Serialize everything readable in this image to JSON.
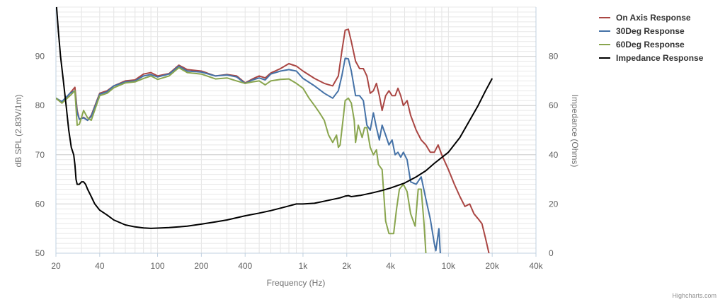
{
  "credits": "Highcharts.com",
  "chart_data": {
    "type": "line",
    "title": "",
    "xlabel": "Frequency (Hz)",
    "ylabel": "dB SPL (2.83V/1m)",
    "y2label": "Impedance (Ohms)",
    "x_scale": "log",
    "xlim": [
      20,
      40000
    ],
    "ylim": [
      50,
      100
    ],
    "y2lim": [
      0,
      100
    ],
    "grid": true,
    "legend_position": "top-right",
    "x_ticks": [
      {
        "value": 20,
        "label": "20"
      },
      {
        "value": 40,
        "label": "40"
      },
      {
        "value": 100,
        "label": "100"
      },
      {
        "value": 200,
        "label": "200"
      },
      {
        "value": 400,
        "label": "400"
      },
      {
        "value": 1000,
        "label": "1k"
      },
      {
        "value": 2000,
        "label": "2k"
      },
      {
        "value": 4000,
        "label": "4k"
      },
      {
        "value": 10000,
        "label": "10k"
      },
      {
        "value": 20000,
        "label": "20k"
      },
      {
        "value": 40000,
        "label": "40k"
      }
    ],
    "y_ticks": [
      50,
      60,
      70,
      80,
      90
    ],
    "y2_ticks": [
      0,
      20,
      40,
      60,
      80
    ],
    "series": [
      {
        "name": "On Axis Response",
        "color": "#aa4643",
        "axis": "left",
        "points": [
          [
            20,
            81.5
          ],
          [
            22,
            80.5
          ],
          [
            25,
            82.5
          ],
          [
            27,
            83.7
          ],
          [
            28,
            79
          ],
          [
            29,
            77.2
          ],
          [
            31,
            77.6
          ],
          [
            33,
            77
          ],
          [
            35,
            78
          ],
          [
            40,
            82.5
          ],
          [
            45,
            83
          ],
          [
            50,
            84
          ],
          [
            60,
            85
          ],
          [
            70,
            85.2
          ],
          [
            80,
            86.4
          ],
          [
            90,
            86.7
          ],
          [
            100,
            86
          ],
          [
            120,
            86.5
          ],
          [
            140,
            88.2
          ],
          [
            160,
            87.3
          ],
          [
            200,
            87
          ],
          [
            250,
            86
          ],
          [
            300,
            86.3
          ],
          [
            350,
            86
          ],
          [
            400,
            84.6
          ],
          [
            450,
            85.4
          ],
          [
            500,
            86
          ],
          [
            550,
            85.6
          ],
          [
            600,
            86.6
          ],
          [
            700,
            87.5
          ],
          [
            800,
            88.5
          ],
          [
            900,
            88
          ],
          [
            1000,
            87
          ],
          [
            1200,
            85.5
          ],
          [
            1400,
            84.5
          ],
          [
            1600,
            84
          ],
          [
            1750,
            86
          ],
          [
            1850,
            91
          ],
          [
            1950,
            95.3
          ],
          [
            2050,
            95.5
          ],
          [
            2150,
            93
          ],
          [
            2300,
            89
          ],
          [
            2450,
            87.5
          ],
          [
            2600,
            87.5
          ],
          [
            2750,
            86
          ],
          [
            2900,
            82.5
          ],
          [
            3050,
            83
          ],
          [
            3200,
            84.5
          ],
          [
            3350,
            82
          ],
          [
            3500,
            79
          ],
          [
            3700,
            82
          ],
          [
            3900,
            83
          ],
          [
            4100,
            82
          ],
          [
            4300,
            82
          ],
          [
            4500,
            83.5
          ],
          [
            4700,
            82
          ],
          [
            4900,
            80
          ],
          [
            5200,
            81
          ],
          [
            5500,
            78
          ],
          [
            6000,
            75
          ],
          [
            6500,
            73
          ],
          [
            7000,
            72
          ],
          [
            7500,
            70.5
          ],
          [
            8000,
            70.5
          ],
          [
            8500,
            72
          ],
          [
            9000,
            70
          ],
          [
            10000,
            67
          ],
          [
            11000,
            64
          ],
          [
            12000,
            61.5
          ],
          [
            13000,
            59.5
          ],
          [
            14000,
            60
          ],
          [
            15000,
            58
          ],
          [
            16000,
            57
          ],
          [
            17000,
            56
          ],
          [
            18000,
            53
          ],
          [
            19000,
            50
          ]
        ]
      },
      {
        "name": "30Deg Response",
        "color": "#4572a7",
        "axis": "left",
        "points": [
          [
            20,
            81.5
          ],
          [
            22,
            80.8
          ],
          [
            25,
            82.5
          ],
          [
            27,
            83
          ],
          [
            28,
            78.5
          ],
          [
            29,
            77.2
          ],
          [
            31,
            77.5
          ],
          [
            33,
            77
          ],
          [
            35,
            77.8
          ],
          [
            40,
            82.3
          ],
          [
            45,
            82.8
          ],
          [
            50,
            84
          ],
          [
            60,
            84.8
          ],
          [
            70,
            85
          ],
          [
            80,
            86
          ],
          [
            90,
            86.3
          ],
          [
            100,
            85.8
          ],
          [
            120,
            86.4
          ],
          [
            140,
            88
          ],
          [
            160,
            87
          ],
          [
            200,
            86.8
          ],
          [
            250,
            86
          ],
          [
            300,
            86.2
          ],
          [
            350,
            85.8
          ],
          [
            400,
            84.5
          ],
          [
            450,
            85.2
          ],
          [
            500,
            85.6
          ],
          [
            550,
            85.2
          ],
          [
            600,
            86.4
          ],
          [
            700,
            87
          ],
          [
            800,
            87.3
          ],
          [
            900,
            87
          ],
          [
            1000,
            85.5
          ],
          [
            1200,
            84
          ],
          [
            1400,
            82.5
          ],
          [
            1600,
            81.5
          ],
          [
            1750,
            83
          ],
          [
            1850,
            86
          ],
          [
            1950,
            89.6
          ],
          [
            2050,
            89.5
          ],
          [
            2150,
            87
          ],
          [
            2300,
            82
          ],
          [
            2450,
            82
          ],
          [
            2600,
            81
          ],
          [
            2750,
            76
          ],
          [
            2900,
            75
          ],
          [
            3050,
            78.5
          ],
          [
            3200,
            75.5
          ],
          [
            3350,
            73
          ],
          [
            3500,
            76
          ],
          [
            3700,
            74
          ],
          [
            3900,
            72
          ],
          [
            4100,
            73
          ],
          [
            4300,
            70
          ],
          [
            4500,
            70.5
          ],
          [
            4700,
            69.5
          ],
          [
            4900,
            70.5
          ],
          [
            5200,
            69
          ],
          [
            5500,
            64.5
          ],
          [
            6000,
            64
          ],
          [
            6500,
            65.5
          ],
          [
            7000,
            61
          ],
          [
            7500,
            57
          ],
          [
            8000,
            52
          ],
          [
            8200,
            50.5
          ],
          [
            8600,
            55
          ],
          [
            8800,
            50
          ]
        ]
      },
      {
        "name": "60Deg Response",
        "color": "#89a54e",
        "axis": "left",
        "points": [
          [
            20,
            81.5
          ],
          [
            22,
            80.5
          ],
          [
            25,
            82
          ],
          [
            27,
            83
          ],
          [
            28,
            76
          ],
          [
            29,
            76.2
          ],
          [
            31,
            79
          ],
          [
            33,
            77.5
          ],
          [
            35,
            77
          ],
          [
            40,
            82
          ],
          [
            45,
            82.5
          ],
          [
            50,
            83.6
          ],
          [
            60,
            84.6
          ],
          [
            70,
            84.8
          ],
          [
            80,
            85.5
          ],
          [
            90,
            86
          ],
          [
            100,
            85.3
          ],
          [
            120,
            86
          ],
          [
            140,
            87.7
          ],
          [
            160,
            86.7
          ],
          [
            200,
            86.4
          ],
          [
            250,
            85.4
          ],
          [
            300,
            85.6
          ],
          [
            350,
            85
          ],
          [
            400,
            84.5
          ],
          [
            450,
            84.8
          ],
          [
            500,
            85
          ],
          [
            550,
            84.2
          ],
          [
            600,
            85
          ],
          [
            700,
            85.3
          ],
          [
            800,
            85.4
          ],
          [
            900,
            84.5
          ],
          [
            1000,
            83.5
          ],
          [
            1100,
            81.5
          ],
          [
            1200,
            80
          ],
          [
            1300,
            78.5
          ],
          [
            1400,
            77
          ],
          [
            1500,
            74
          ],
          [
            1600,
            72.5
          ],
          [
            1700,
            74
          ],
          [
            1750,
            71.5
          ],
          [
            1800,
            72
          ],
          [
            1900,
            78
          ],
          [
            1950,
            81
          ],
          [
            2050,
            81.5
          ],
          [
            2150,
            80.5
          ],
          [
            2250,
            77
          ],
          [
            2300,
            72.5
          ],
          [
            2400,
            76
          ],
          [
            2550,
            73.5
          ],
          [
            2650,
            75.5
          ],
          [
            2750,
            75.5
          ],
          [
            2900,
            71.5
          ],
          [
            3050,
            70
          ],
          [
            3200,
            71
          ],
          [
            3300,
            68
          ],
          [
            3500,
            67
          ],
          [
            3700,
            56.5
          ],
          [
            3900,
            54
          ],
          [
            4200,
            54
          ],
          [
            4400,
            59
          ],
          [
            4600,
            63
          ],
          [
            4900,
            64
          ],
          [
            5200,
            62.5
          ],
          [
            5500,
            58
          ],
          [
            5900,
            55.5
          ],
          [
            6200,
            63
          ],
          [
            6500,
            63
          ],
          [
            6800,
            56
          ],
          [
            7000,
            50
          ]
        ]
      },
      {
        "name": "Impedance Response",
        "color": "#000000",
        "axis": "right",
        "points": [
          [
            20.2,
            100
          ],
          [
            20.8,
            90
          ],
          [
            21.5,
            80
          ],
          [
            22.5,
            70
          ],
          [
            23.5,
            60
          ],
          [
            24.5,
            50
          ],
          [
            25.5,
            43
          ],
          [
            26.5,
            40
          ],
          [
            27,
            36
          ],
          [
            27.5,
            30
          ],
          [
            28,
            28
          ],
          [
            29,
            28
          ],
          [
            30,
            29
          ],
          [
            31,
            29
          ],
          [
            32,
            28
          ],
          [
            33,
            26
          ],
          [
            35,
            23
          ],
          [
            37,
            20
          ],
          [
            40,
            17.5
          ],
          [
            45,
            15.5
          ],
          [
            50,
            13.5
          ],
          [
            60,
            11.5
          ],
          [
            70,
            10.7
          ],
          [
            80,
            10.3
          ],
          [
            90,
            10.1
          ],
          [
            100,
            10.2
          ],
          [
            120,
            10.4
          ],
          [
            140,
            10.7
          ],
          [
            160,
            11
          ],
          [
            200,
            11.8
          ],
          [
            250,
            12.7
          ],
          [
            300,
            13.5
          ],
          [
            400,
            15.2
          ],
          [
            500,
            16.3
          ],
          [
            600,
            17.3
          ],
          [
            700,
            18.3
          ],
          [
            800,
            19.2
          ],
          [
            900,
            20
          ],
          [
            1000,
            20
          ],
          [
            1200,
            20.3
          ],
          [
            1500,
            21.5
          ],
          [
            1800,
            22.5
          ],
          [
            1950,
            23.2
          ],
          [
            2050,
            23.4
          ],
          [
            2150,
            23
          ],
          [
            2500,
            23.5
          ],
          [
            3000,
            24.5
          ],
          [
            3500,
            25.5
          ],
          [
            4000,
            26.5
          ],
          [
            5000,
            28.5
          ],
          [
            6000,
            31
          ],
          [
            7000,
            33.5
          ],
          [
            8000,
            36.5
          ],
          [
            10000,
            41
          ],
          [
            12000,
            47
          ],
          [
            14000,
            54
          ],
          [
            16000,
            60
          ],
          [
            18000,
            66
          ],
          [
            20000,
            71
          ]
        ]
      }
    ]
  }
}
